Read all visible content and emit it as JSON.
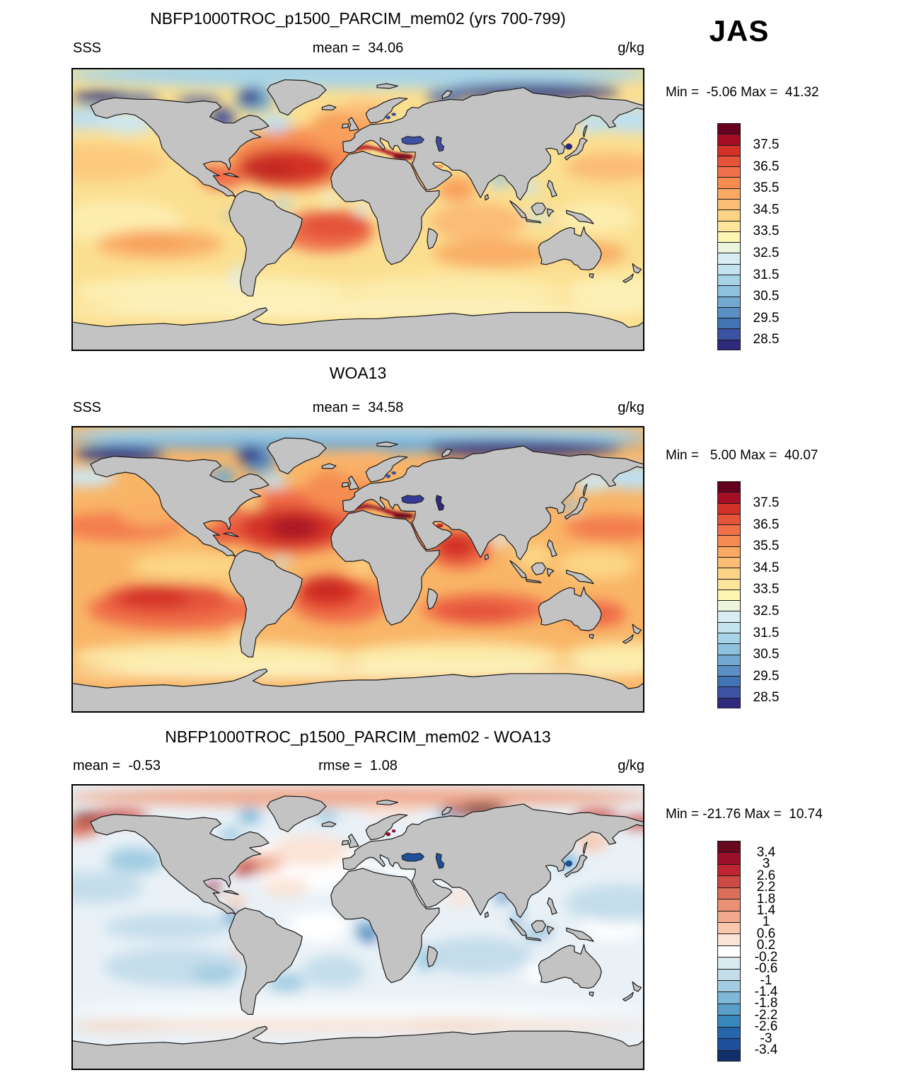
{
  "season_label": "JAS",
  "units": "g/kg",
  "panels": [
    {
      "title": "NBFP1000TROC_p1500_PARCIM_mem02 (yrs 700-799)",
      "left_label": "SSS",
      "center_label": "mean =  34.06",
      "units": "g/kg",
      "minmax": "Min =  -5.06 Max =  41.32",
      "colorbar": "salinity"
    },
    {
      "title": "WOA13",
      "left_label": "SSS",
      "center_label": "mean =  34.58",
      "units": "g/kg",
      "minmax": "Min =   5.00 Max =  40.07",
      "colorbar": "salinity"
    },
    {
      "title": "NBFP1000TROC_p1500_PARCIM_mem02 - WOA13",
      "left_label": "mean =  -0.53",
      "center_label": "rmse =  1.08",
      "units": "g/kg",
      "minmax": "Min = -21.76 Max =  10.74",
      "colorbar": "diff"
    }
  ],
  "colorbars": {
    "salinity": {
      "ticks": [
        "37.5",
        "36.5",
        "35.5",
        "34.5",
        "33.5",
        "32.5",
        "31.5",
        "30.5",
        "29.5",
        "28.5"
      ],
      "colors": [
        "#67001f",
        "#a50f26",
        "#d33127",
        "#e4533a",
        "#f0704a",
        "#f78c51",
        "#fba962",
        "#fcbd74",
        "#fdd385",
        "#fde69b",
        "#fdf5b2",
        "#eaf5dc",
        "#d8edf3",
        "#c3e3ee",
        "#a7d3e6",
        "#8ec1dd",
        "#74aad2",
        "#5a90c4",
        "#4273b4",
        "#3c53a3",
        "#302a7e"
      ]
    },
    "diff": {
      "ticks": [
        "3.4",
        "3",
        "2.6",
        "2.2",
        "1.8",
        "1.4",
        "1",
        "0.6",
        "0.2",
        "-0.2",
        "-0.6",
        "-1",
        "-1.4",
        "-1.8",
        "-2.2",
        "-2.6",
        "-3",
        "-3.4"
      ],
      "colors": [
        "#67081f",
        "#9b0f29",
        "#be2431",
        "#cd4a44",
        "#da6f5a",
        "#ea9073",
        "#efa88c",
        "#f7c7ae",
        "#fbe3d5",
        "#ffffff",
        "#dcebf2",
        "#c4ddeb",
        "#a1cce1",
        "#7eb7d7",
        "#58a0ca",
        "#3a87bf",
        "#2766ad",
        "#1d4f9b",
        "#11306b"
      ]
    }
  },
  "map_style": {
    "land": "#c3c3c3",
    "coastline": "#1a1a1a",
    "border": "#000000"
  },
  "chart_data": {
    "type": "heatmap",
    "subtype": "filled-contour world maps (equirectangular)",
    "season": "JAS",
    "variable": "SSS",
    "units": "g/kg",
    "legend_position": "right",
    "panels": [
      {
        "title": "NBFP1000TROC_p1500_PARCIM_mem02 (yrs 700-799)",
        "stat_labels": {
          "mean": 34.06,
          "min": -5.06,
          "max": 41.32
        },
        "colorbar_tick_values": [
          37.5,
          36.5,
          35.5,
          34.5,
          33.5,
          32.5,
          31.5,
          30.5,
          29.5,
          28.5
        ],
        "colorbar_range": [
          28.0,
          38.5
        ],
        "colorbar_step": 0.5
      },
      {
        "title": "WOA13",
        "stat_labels": {
          "mean": 34.58,
          "min": 5.0,
          "max": 40.07
        },
        "colorbar_tick_values": [
          37.5,
          36.5,
          35.5,
          34.5,
          33.5,
          32.5,
          31.5,
          30.5,
          29.5,
          28.5
        ],
        "colorbar_range": [
          28.0,
          38.5
        ],
        "colorbar_step": 0.5
      },
      {
        "title": "NBFP1000TROC_p1500_PARCIM_mem02 - WOA13",
        "stat_labels": {
          "mean": -0.53,
          "rmse": 1.08,
          "min": -21.76,
          "max": 10.74
        },
        "colorbar_tick_values": [
          3.4,
          3,
          2.6,
          2.2,
          1.8,
          1.4,
          1,
          0.6,
          0.2,
          -0.2,
          -0.6,
          -1,
          -1.4,
          -1.8,
          -2.2,
          -2.6,
          -3,
          -3.4
        ],
        "colorbar_range": [
          -3.8,
          3.8
        ],
        "colorbar_step": 0.4
      }
    ]
  }
}
